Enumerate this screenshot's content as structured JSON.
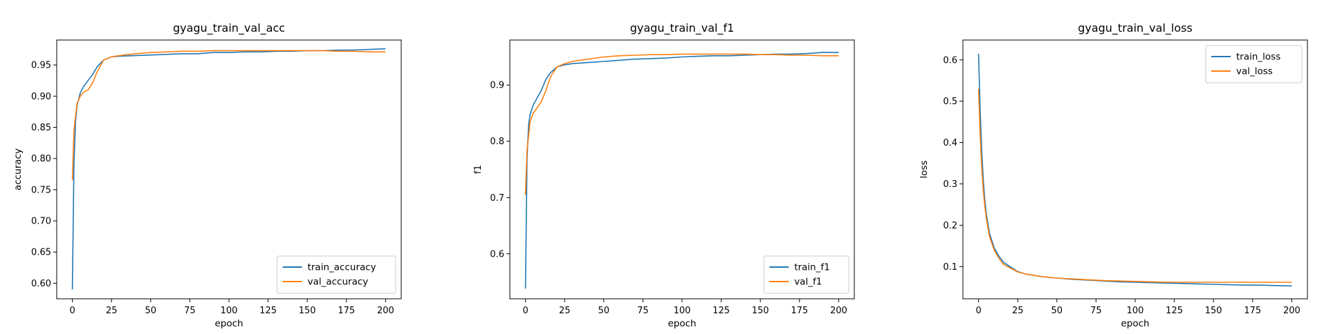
{
  "colors": {
    "train": "#1f77b4",
    "val": "#ff7f0e"
  },
  "chart_data": [
    {
      "type": "line",
      "title": "gyagu_train_val_acc",
      "xlabel": "epoch",
      "ylabel": "accuracy",
      "xlim": [
        -10,
        210
      ],
      "ylim": [
        0.575,
        0.99
      ],
      "xticks": [
        0,
        25,
        50,
        75,
        100,
        125,
        150,
        175,
        200
      ],
      "yticks": [
        0.6,
        0.65,
        0.7,
        0.75,
        0.8,
        0.85,
        0.9,
        0.95
      ],
      "ytick_labels": [
        "0.60",
        "0.65",
        "0.70",
        "0.75",
        "0.80",
        "0.85",
        "0.90",
        "0.95"
      ],
      "legend_position": "lower-right",
      "series": [
        {
          "name": "train_accuracy",
          "color_key": "train",
          "x": [
            0,
            1,
            2,
            3,
            5,
            7,
            10,
            13,
            16,
            20,
            25,
            30,
            40,
            50,
            60,
            70,
            80,
            90,
            100,
            110,
            120,
            130,
            140,
            150,
            160,
            170,
            180,
            190,
            200
          ],
          "y": [
            0.59,
            0.79,
            0.86,
            0.885,
            0.905,
            0.915,
            0.925,
            0.935,
            0.948,
            0.958,
            0.963,
            0.964,
            0.965,
            0.966,
            0.967,
            0.968,
            0.968,
            0.97,
            0.97,
            0.971,
            0.971,
            0.972,
            0.972,
            0.973,
            0.973,
            0.974,
            0.974,
            0.975,
            0.976
          ]
        },
        {
          "name": "val_accuracy",
          "color_key": "val",
          "x": [
            0,
            1,
            2,
            3,
            5,
            7,
            10,
            13,
            16,
            20,
            25,
            30,
            40,
            50,
            60,
            70,
            80,
            90,
            100,
            110,
            120,
            130,
            140,
            150,
            160,
            170,
            180,
            190,
            200
          ],
          "y": [
            0.765,
            0.845,
            0.868,
            0.888,
            0.9,
            0.906,
            0.91,
            0.922,
            0.94,
            0.958,
            0.963,
            0.965,
            0.968,
            0.97,
            0.971,
            0.972,
            0.972,
            0.973,
            0.973,
            0.973,
            0.973,
            0.973,
            0.973,
            0.973,
            0.973,
            0.972,
            0.972,
            0.971,
            0.971
          ]
        }
      ]
    },
    {
      "type": "line",
      "title": "gyagu_train_val_f1",
      "xlabel": "epoch",
      "ylabel": "f1",
      "xlim": [
        -10,
        210
      ],
      "ylim": [
        0.52,
        0.98
      ],
      "xticks": [
        0,
        25,
        50,
        75,
        100,
        125,
        150,
        175,
        200
      ],
      "yticks": [
        0.6,
        0.7,
        0.8,
        0.9
      ],
      "ytick_labels": [
        "0.6",
        "0.7",
        "0.8",
        "0.9"
      ],
      "legend_position": "lower-right",
      "series": [
        {
          "name": "train_f1",
          "color_key": "train",
          "x": [
            0,
            1,
            2,
            3,
            5,
            7,
            10,
            13,
            16,
            20,
            25,
            30,
            40,
            50,
            60,
            70,
            80,
            90,
            100,
            110,
            120,
            130,
            140,
            150,
            160,
            170,
            180,
            190,
            200
          ],
          "y": [
            0.538,
            0.77,
            0.83,
            0.848,
            0.865,
            0.875,
            0.89,
            0.91,
            0.922,
            0.932,
            0.936,
            0.938,
            0.94,
            0.942,
            0.944,
            0.946,
            0.947,
            0.948,
            0.95,
            0.951,
            0.952,
            0.952,
            0.953,
            0.954,
            0.955,
            0.955,
            0.956,
            0.958,
            0.958
          ]
        },
        {
          "name": "val_f1",
          "color_key": "val",
          "x": [
            0,
            1,
            2,
            3,
            5,
            7,
            10,
            13,
            16,
            20,
            25,
            30,
            40,
            50,
            60,
            70,
            80,
            90,
            100,
            110,
            120,
            130,
            140,
            150,
            160,
            170,
            180,
            190,
            200
          ],
          "y": [
            0.705,
            0.785,
            0.81,
            0.835,
            0.85,
            0.858,
            0.87,
            0.89,
            0.915,
            0.932,
            0.938,
            0.942,
            0.946,
            0.95,
            0.952,
            0.953,
            0.954,
            0.954,
            0.955,
            0.955,
            0.955,
            0.955,
            0.955,
            0.954,
            0.954,
            0.953,
            0.953,
            0.952,
            0.952
          ]
        }
      ]
    },
    {
      "type": "line",
      "title": "gyagu_train_val_loss",
      "xlabel": "epoch",
      "ylabel": "loss",
      "xlim": [
        -10,
        210
      ],
      "ylim": [
        0.022,
        0.648
      ],
      "xticks": [
        0,
        25,
        50,
        75,
        100,
        125,
        150,
        175,
        200
      ],
      "yticks": [
        0.1,
        0.2,
        0.3,
        0.4,
        0.5,
        0.6
      ],
      "ytick_labels": [
        "0.1",
        "0.2",
        "0.3",
        "0.4",
        "0.5",
        "0.6"
      ],
      "legend_position": "upper-right",
      "series": [
        {
          "name": "train_loss",
          "color_key": "train",
          "x": [
            0,
            1,
            2,
            3,
            4,
            5,
            7,
            10,
            13,
            16,
            20,
            25,
            30,
            40,
            50,
            60,
            70,
            80,
            90,
            100,
            110,
            120,
            130,
            140,
            150,
            160,
            170,
            180,
            190,
            200
          ],
          "y": [
            0.615,
            0.48,
            0.38,
            0.31,
            0.26,
            0.225,
            0.18,
            0.145,
            0.125,
            0.11,
            0.1,
            0.088,
            0.082,
            0.076,
            0.072,
            0.069,
            0.067,
            0.065,
            0.063,
            0.062,
            0.061,
            0.06,
            0.059,
            0.058,
            0.057,
            0.056,
            0.055,
            0.055,
            0.054,
            0.053
          ]
        },
        {
          "name": "val_loss",
          "color_key": "val",
          "x": [
            0,
            1,
            2,
            3,
            4,
            5,
            7,
            10,
            13,
            16,
            20,
            25,
            30,
            40,
            50,
            60,
            70,
            80,
            90,
            100,
            110,
            120,
            130,
            140,
            150,
            160,
            170,
            180,
            190,
            200
          ],
          "y": [
            0.53,
            0.42,
            0.34,
            0.285,
            0.245,
            0.215,
            0.172,
            0.14,
            0.12,
            0.105,
            0.097,
            0.087,
            0.082,
            0.076,
            0.072,
            0.07,
            0.068,
            0.066,
            0.065,
            0.064,
            0.063,
            0.062,
            0.062,
            0.062,
            0.062,
            0.062,
            0.062,
            0.062,
            0.062,
            0.062
          ]
        }
      ]
    }
  ]
}
